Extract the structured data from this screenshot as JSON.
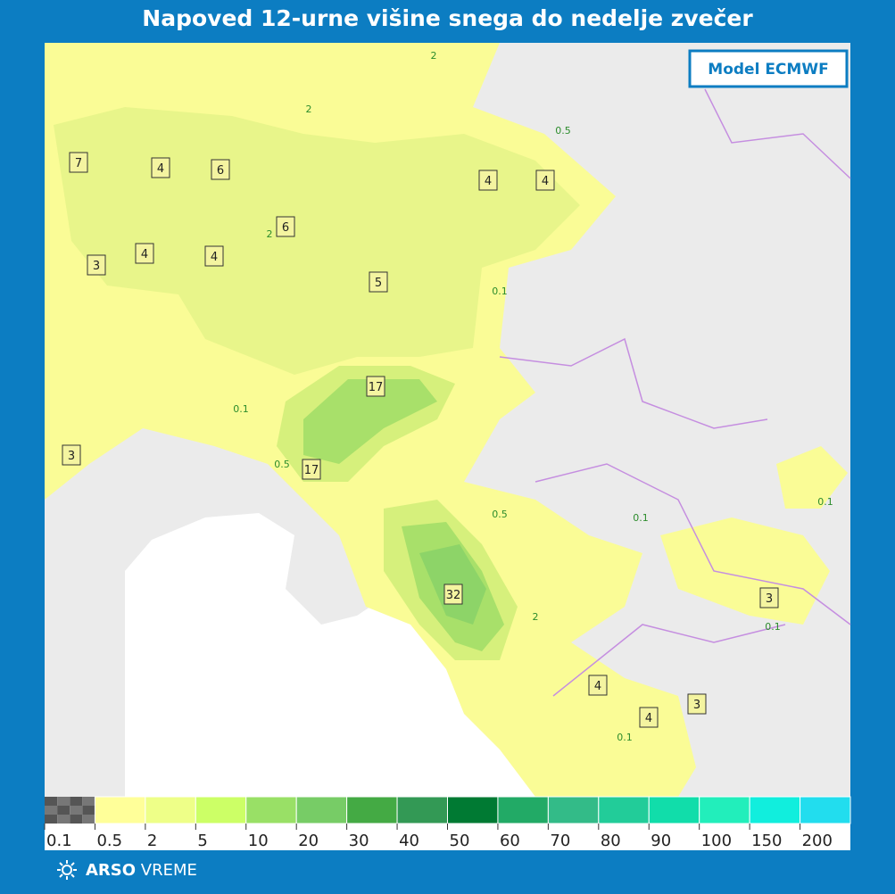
{
  "header": {
    "title": "Napoved 12-urne višine snega do nedelje zvečer",
    "badge": "Model ECMWF"
  },
  "map": {
    "labels": [
      "7",
      "4",
      "6",
      "6",
      "3",
      "4",
      "4",
      "5",
      "4",
      "4",
      "17",
      "17",
      "3",
      "32",
      "3",
      "4",
      "4",
      "3"
    ],
    "contour_labels": [
      "2",
      "2",
      "0.5",
      "0.1",
      "2",
      "0.1",
      "0.5",
      "0.5",
      "0.1",
      "0.1",
      "0.1",
      "2",
      "0.1"
    ]
  },
  "legend": {
    "labels": [
      "0.1",
      "0.5",
      "2",
      "5",
      "10",
      "20",
      "30",
      "40",
      "50",
      "60",
      "70",
      "80",
      "90",
      "100",
      "150",
      "200"
    ],
    "colors": [
      "#555555",
      "#ffff99",
      "#eeff88",
      "#ccff66",
      "#99e066",
      "#77cc66",
      "#44aa44",
      "#339955",
      "#007a33",
      "#22aa66",
      "#33bb88",
      "#22cc99",
      "#11ddaa",
      "#22eebb",
      "#11eedd",
      "#22ddee"
    ]
  },
  "footer": {
    "brand": "ARSO",
    "sub": "VREME"
  }
}
